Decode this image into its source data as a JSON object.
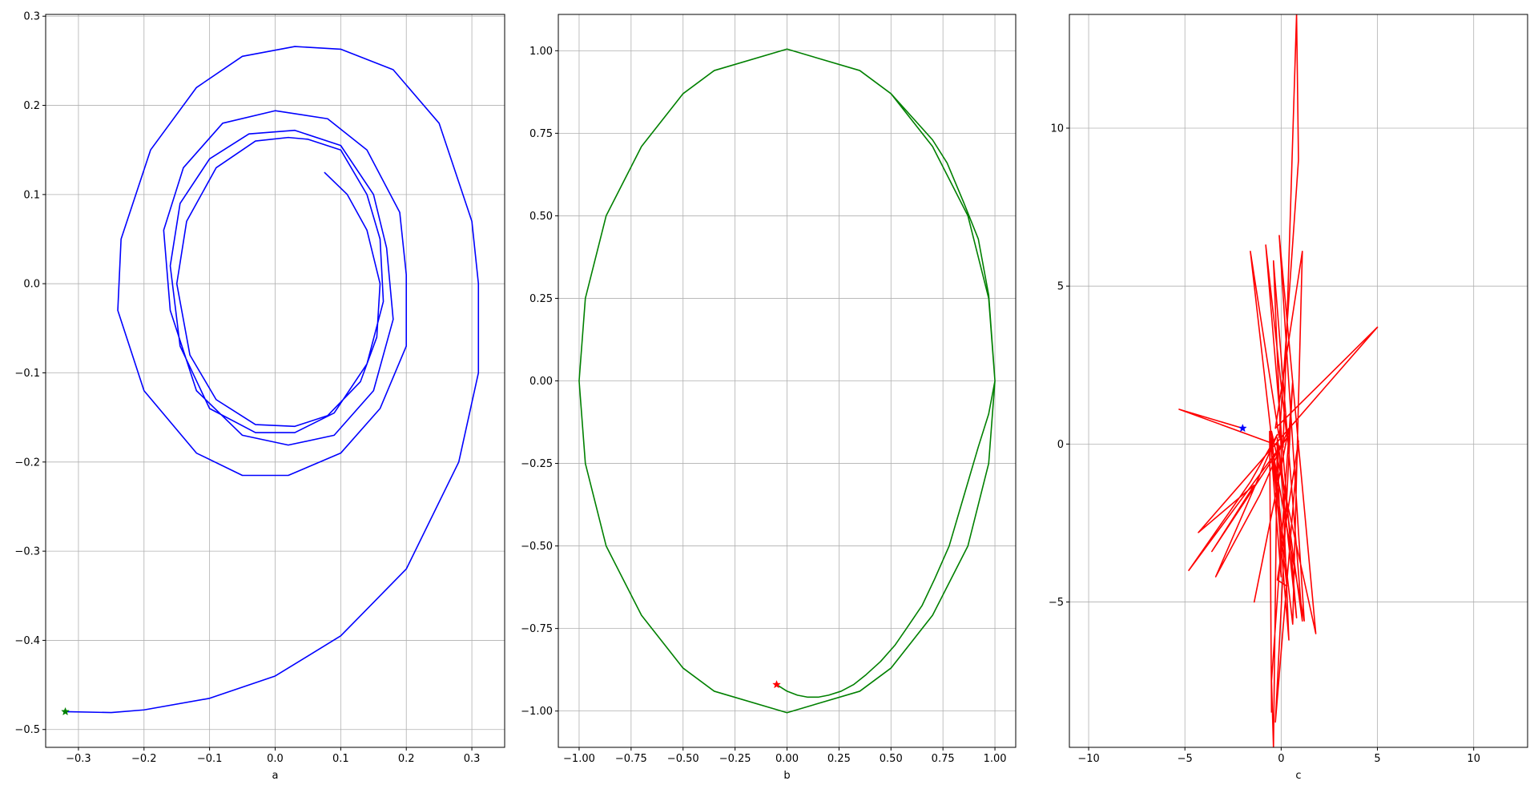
{
  "chart_data": [
    {
      "type": "line",
      "title": "",
      "xlabel": "a",
      "ylabel": "",
      "xlim": [
        -0.35,
        0.35
      ],
      "ylim": [
        -0.52,
        0.302
      ],
      "grid": true,
      "xticks": [
        -0.3,
        -0.2,
        -0.1,
        0.0,
        0.1,
        0.2,
        0.3
      ],
      "xtick_labels": [
        "−0.3",
        "−0.2",
        "−0.1",
        "0.0",
        "0.1",
        "0.2",
        "0.3"
      ],
      "yticks": [
        -0.5,
        -0.4,
        -0.3,
        -0.2,
        -0.1,
        0.0,
        0.1,
        0.2,
        0.3
      ],
      "ytick_labels": [
        "−0.5",
        "−0.4",
        "−0.3",
        "−0.2",
        "−0.1",
        "0.0",
        "0.1",
        "0.2",
        "0.3"
      ],
      "series": [
        {
          "color": "#0000ff",
          "x": [
            -0.32,
            -0.25,
            -0.2,
            -0.1,
            0.0,
            0.1,
            0.2,
            0.28,
            0.31,
            0.31,
            0.3,
            0.25,
            0.18,
            0.1,
            0.03,
            -0.05,
            -0.12,
            -0.19,
            -0.235,
            -0.24,
            -0.2,
            -0.12,
            -0.05,
            0.02,
            0.1,
            0.16,
            0.2,
            0.2,
            0.19,
            0.14,
            0.08,
            0.0,
            -0.08,
            -0.14,
            -0.17,
            -0.16,
            -0.12,
            -0.05,
            0.02,
            0.09,
            0.15,
            0.18,
            0.17,
            0.15,
            0.1,
            0.03,
            -0.04,
            -0.1,
            -0.145,
            -0.16,
            -0.145,
            -0.1,
            -0.03,
            0.03,
            0.09,
            0.14,
            0.165,
            0.16,
            0.14,
            0.1,
            0.05,
            0.02,
            -0.03,
            -0.09,
            -0.135,
            -0.15,
            -0.13,
            -0.09,
            -0.03,
            0.03,
            0.08,
            0.13,
            0.155,
            0.16,
            0.14,
            0.11,
            0.075
          ],
          "y": [
            -0.48,
            -0.481,
            -0.478,
            -0.465,
            -0.44,
            -0.395,
            -0.32,
            -0.2,
            -0.1,
            0.0,
            0.07,
            0.18,
            0.24,
            0.263,
            0.266,
            0.255,
            0.22,
            0.15,
            0.05,
            -0.03,
            -0.12,
            -0.19,
            -0.215,
            -0.215,
            -0.19,
            -0.14,
            -0.07,
            0.01,
            0.08,
            0.15,
            0.185,
            0.194,
            0.18,
            0.13,
            0.06,
            -0.03,
            -0.12,
            -0.17,
            -0.181,
            -0.17,
            -0.12,
            -0.04,
            0.04,
            0.1,
            0.155,
            0.172,
            0.168,
            0.14,
            0.09,
            0.02,
            -0.07,
            -0.14,
            -0.167,
            -0.167,
            -0.145,
            -0.09,
            -0.02,
            0.05,
            0.1,
            0.15,
            0.162,
            0.164,
            0.16,
            0.13,
            0.07,
            0.0,
            -0.08,
            -0.13,
            -0.158,
            -0.16,
            -0.148,
            -0.11,
            -0.06,
            0.0,
            0.06,
            0.1,
            0.125
          ]
        }
      ],
      "markers": [
        {
          "x": -0.32,
          "y": -0.48,
          "shape": "star",
          "color": "#008000"
        }
      ]
    },
    {
      "type": "line",
      "title": "",
      "xlabel": "b",
      "ylabel": "",
      "xlim": [
        -1.1,
        1.1
      ],
      "ylim": [
        -1.11,
        1.11
      ],
      "grid": true,
      "xticks": [
        -1.0,
        -0.75,
        -0.5,
        -0.25,
        0.0,
        0.25,
        0.5,
        0.75,
        1.0
      ],
      "xtick_labels": [
        "−1.00",
        "−0.75",
        "−0.50",
        "−0.25",
        "0.00",
        "0.25",
        "0.50",
        "0.75",
        "1.00"
      ],
      "yticks": [
        -1.0,
        -0.75,
        -0.5,
        -0.25,
        0.0,
        0.25,
        0.5,
        0.75,
        1.0
      ],
      "ytick_labels": [
        "−1.00",
        "−0.75",
        "−0.50",
        "−0.25",
        "0.00",
        "0.25",
        "0.50",
        "0.75",
        "1.00"
      ],
      "series": [
        {
          "color": "#008000",
          "x": [
            -0.05,
            0.0,
            0.05,
            0.1,
            0.15,
            0.2,
            0.26,
            0.32,
            0.38,
            0.45,
            0.52,
            0.58,
            0.65,
            0.71,
            0.78,
            0.85,
            0.92,
            0.97,
            1.0,
            1.0,
            0.97,
            0.92,
            0.85,
            0.77,
            0.7,
            0.5,
            0.35,
            0.0,
            -0.35,
            -0.5,
            -0.7,
            -0.87,
            -0.97,
            -1.0,
            -0.97,
            -0.87,
            -0.7,
            -0.5,
            -0.35,
            0.0,
            0.35,
            0.5,
            0.7,
            0.87,
            0.97,
            1.0,
            0.97,
            0.87,
            0.7,
            0.5,
            0.35,
            0.0
          ],
          "y": [
            -0.92,
            -0.94,
            -0.952,
            -0.958,
            -0.958,
            -0.952,
            -0.94,
            -0.92,
            -0.89,
            -0.85,
            -0.8,
            -0.745,
            -0.68,
            -0.6,
            -0.5,
            -0.35,
            -0.2,
            -0.1,
            0.0,
            0.0,
            0.26,
            0.43,
            0.54,
            0.66,
            0.73,
            0.87,
            0.94,
            1.005,
            0.94,
            0.87,
            0.71,
            0.5,
            0.25,
            0.0,
            -0.25,
            -0.5,
            -0.71,
            -0.87,
            -0.94,
            -1.005,
            -0.94,
            -0.87,
            -0.71,
            -0.5,
            -0.25,
            0.0,
            0.25,
            0.5,
            0.71,
            0.87,
            0.94,
            1.005
          ]
        }
      ],
      "markers": [
        {
          "x": -0.05,
          "y": -0.92,
          "shape": "star",
          "color": "#ff0000"
        }
      ]
    },
    {
      "type": "line",
      "title": "",
      "xlabel": "c",
      "ylabel": "",
      "xlim": [
        -11.0,
        12.8
      ],
      "ylim": [
        -9.6,
        13.6
      ],
      "grid": true,
      "xticks": [
        -10,
        -5,
        0,
        5,
        10
      ],
      "xtick_labels": [
        "−10",
        "−5",
        "0",
        "5",
        "10"
      ],
      "yticks": [
        -5,
        0,
        5,
        10
      ],
      "ytick_labels": [
        "−5",
        "0",
        "5",
        "10"
      ],
      "series": [
        {
          "color": "#ff0000",
          "x": [
            -2.0,
            -5.3,
            0.1,
            0.8,
            0.9,
            -0.1,
            -1.6,
            0.6,
            1.1,
            -0.3,
            5.0,
            -4.3,
            -1.4,
            -3.6,
            0.3,
            -4.8,
            -1.6,
            -0.2,
            -3.4,
            -1.1,
            0.4,
            -1.4,
            0.3,
            -0.8,
            0.8,
            -0.2,
            1.1,
            -0.4,
            0.4,
            -0.5,
            1.8,
            -0.1,
            1.2,
            -0.6,
            0.3,
            -0.2,
            0.9,
            -0.3,
            0.6,
            -0.5,
            -0.4,
            -0.2,
            0.0,
            -0.6,
            -0.5
          ],
          "y": [
            0.5,
            1.1,
            -0.1,
            13.6,
            9.0,
            0.2,
            6.1,
            -5.7,
            6.1,
            0.5,
            3.7,
            -2.8,
            -1.3,
            -3.4,
            0.2,
            -4.0,
            -1.2,
            0.3,
            -4.2,
            -1.6,
            0.5,
            -5.0,
            0.2,
            6.3,
            -5.5,
            0.2,
            -5.6,
            5.8,
            -6.2,
            0.4,
            -6.0,
            6.6,
            -5.6,
            0.3,
            -4.5,
            -4.3,
            0.1,
            -8.8,
            2.0,
            -7.5,
            -9.6,
            0.2,
            -4.2,
            0.4,
            -8.5
          ]
        }
      ],
      "markers": [
        {
          "x": -2.0,
          "y": 0.5,
          "shape": "star",
          "color": "#0000ff"
        }
      ]
    }
  ]
}
